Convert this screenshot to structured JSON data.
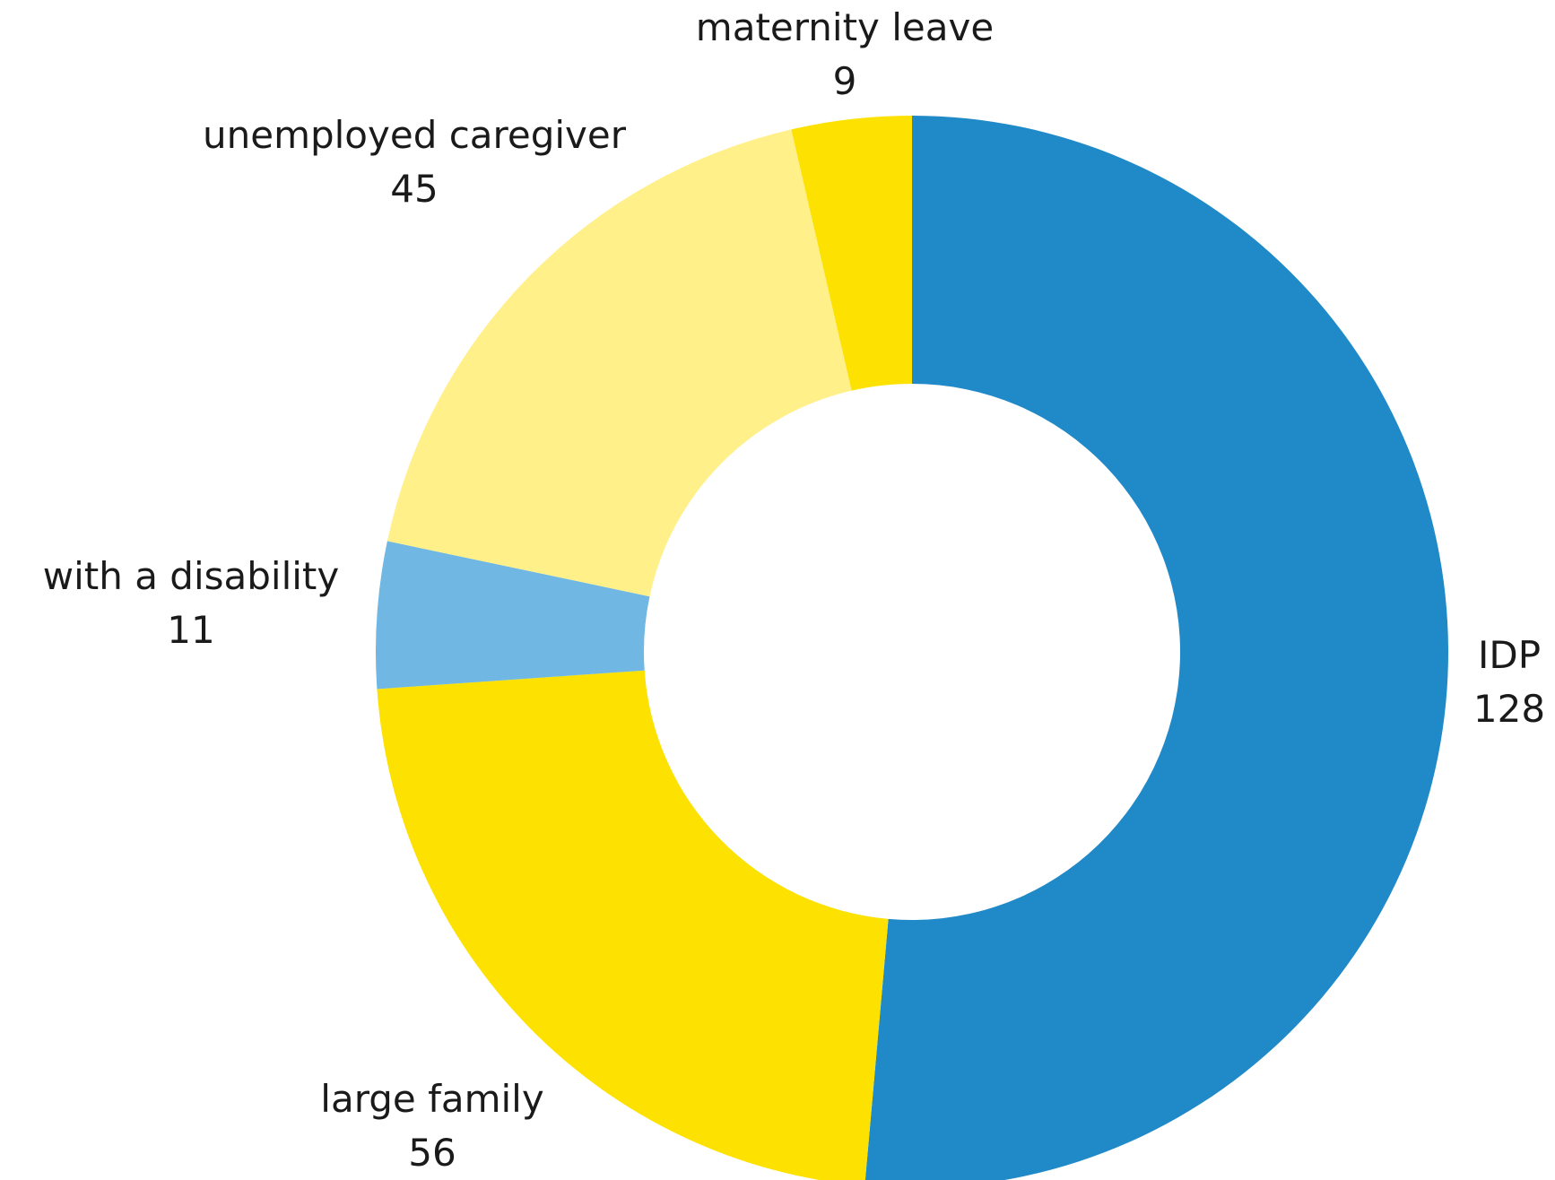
{
  "chart_data": {
    "type": "pie",
    "style": "donut",
    "categories": [
      "IDP",
      "large family",
      "with a disability",
      "unemployed caregiver",
      "maternity leave"
    ],
    "values": [
      128,
      56,
      11,
      45,
      9
    ],
    "colors": [
      "#2089C8",
      "#FDE101",
      "#70B8E3",
      "#FFF08A",
      "#FDE101"
    ],
    "title": "",
    "legend": "none",
    "start_angle": "top, clockwise"
  }
}
